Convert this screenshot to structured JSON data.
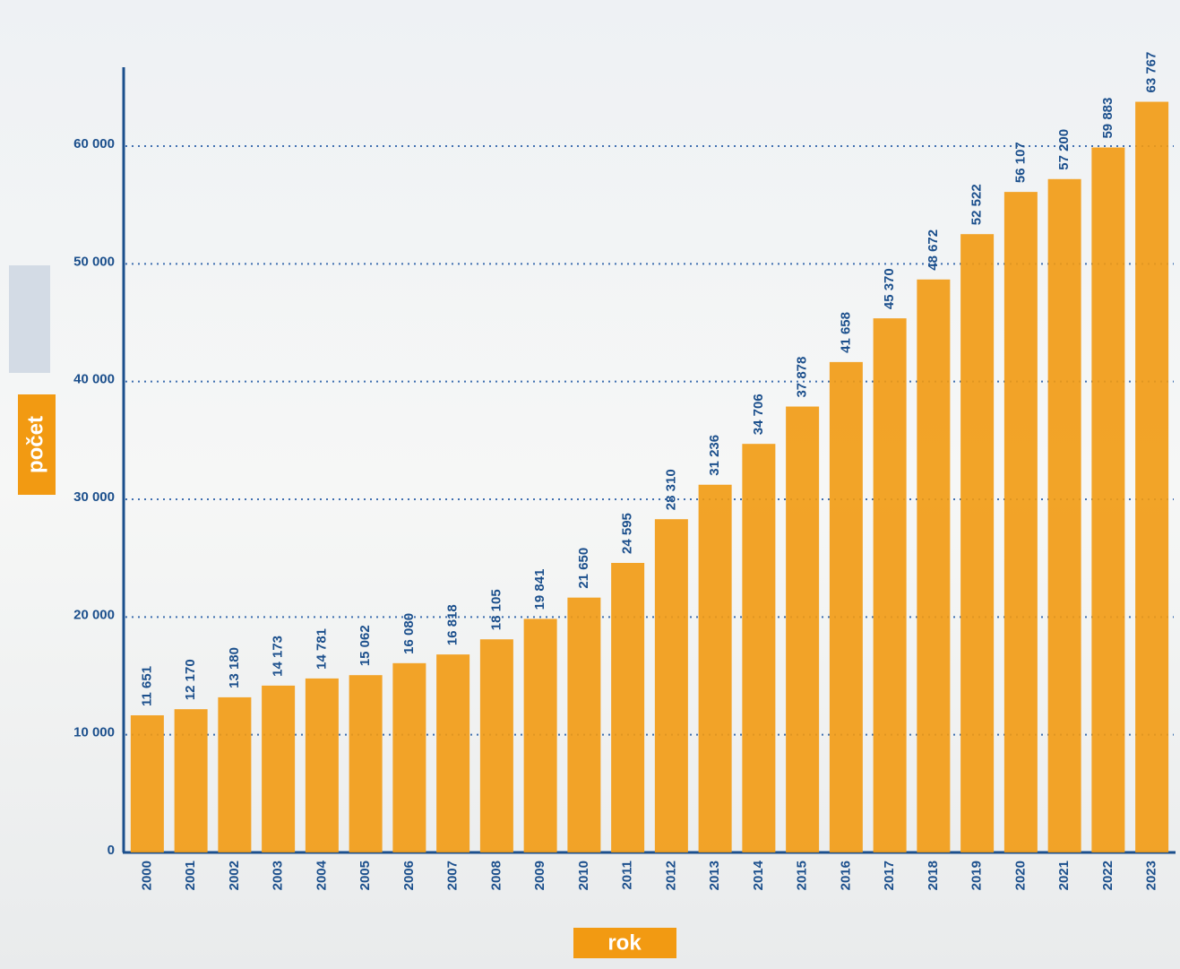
{
  "chart_data": {
    "type": "bar",
    "x_label": "rok",
    "y_label": "počet",
    "categories": [
      "2000",
      "2001",
      "2002",
      "2003",
      "2004",
      "2005",
      "2006",
      "2007",
      "2008",
      "2009",
      "2010",
      "2011",
      "2012",
      "2013",
      "2014",
      "2015",
      "2016",
      "2017",
      "2018",
      "2019",
      "2020",
      "2021",
      "2022",
      "2023"
    ],
    "values": [
      11651,
      12170,
      13180,
      14173,
      14781,
      15062,
      16080,
      16818,
      18105,
      19841,
      21650,
      24595,
      28310,
      31236,
      34706,
      37878,
      41658,
      45370,
      48672,
      52522,
      56107,
      57200,
      59883,
      63767
    ],
    "value_labels": [
      "11 651",
      "12 170",
      "13 180",
      "14 173",
      "14 781",
      "15 062",
      "16 080",
      "16 818",
      "18 105",
      "19 841",
      "21 650",
      "24 595",
      "28 310",
      "31 236",
      "34 706",
      "37 878",
      "41 658",
      "45 370",
      "48 672",
      "52 522",
      "56 107",
      "57 200",
      "59 883",
      "63 767"
    ],
    "color": "#f29a12",
    "ylim": [
      0,
      66700
    ],
    "yticks": [
      0,
      {
        "value": 10000,
        "label": "10 000"
      },
      {
        "value": 20000,
        "label": "20 000"
      },
      {
        "value": 30000,
        "label": "30 000"
      },
      {
        "value": 40000,
        "label": "40 000"
      },
      {
        "value": 50000,
        "label": "50 000"
      },
      {
        "value": 60000,
        "label": "60 000"
      }
    ],
    "grid": true
  }
}
